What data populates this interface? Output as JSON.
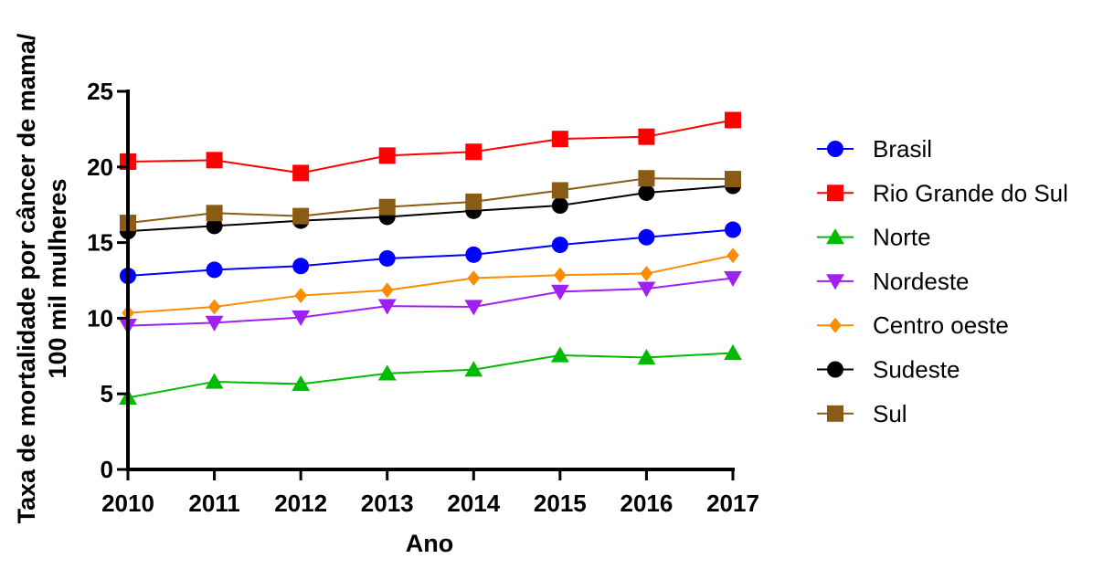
{
  "chart_data": {
    "type": "line",
    "xlabel": "Ano",
    "ylabel_line1": "Taxa de mortalidade por câncer de mama/",
    "ylabel_line2": "100 mil mulheres",
    "ylim": [
      0,
      25
    ],
    "yticks": [
      0,
      5,
      10,
      15,
      20,
      25
    ],
    "x": [
      2010,
      2011,
      2012,
      2013,
      2014,
      2015,
      2016,
      2017
    ],
    "legend_position": "right",
    "series": [
      {
        "name": "Brasil",
        "color": "#0000ff",
        "marker": "circle",
        "values": [
          12.8,
          13.2,
          13.45,
          13.95,
          14.2,
          14.85,
          15.35,
          15.85
        ]
      },
      {
        "name": "Rio Grande do Sul",
        "color": "#ff0000",
        "marker": "square",
        "values": [
          20.35,
          20.45,
          19.6,
          20.75,
          21.0,
          21.85,
          22.0,
          23.1
        ]
      },
      {
        "name": "Norte",
        "color": "#00bb00",
        "marker": "triangle-up",
        "values": [
          4.75,
          5.8,
          5.65,
          6.35,
          6.6,
          7.55,
          7.4,
          7.7
        ]
      },
      {
        "name": "Nordeste",
        "color": "#a020f0",
        "marker": "triangle-down",
        "values": [
          9.5,
          9.7,
          10.05,
          10.8,
          10.75,
          11.75,
          11.95,
          12.65
        ]
      },
      {
        "name": "Centro oeste",
        "color": "#ff8c00",
        "marker": "diamond",
        "values": [
          10.35,
          10.75,
          11.5,
          11.85,
          12.65,
          12.85,
          12.95,
          14.15
        ]
      },
      {
        "name": "Sudeste",
        "color": "#000000",
        "marker": "circle",
        "values": [
          15.75,
          16.1,
          16.45,
          16.7,
          17.1,
          17.45,
          18.3,
          18.75
        ]
      },
      {
        "name": "Sul",
        "color": "#8b5a14",
        "marker": "square",
        "values": [
          16.3,
          16.95,
          16.75,
          17.35,
          17.7,
          18.45,
          19.25,
          19.2
        ]
      }
    ]
  }
}
